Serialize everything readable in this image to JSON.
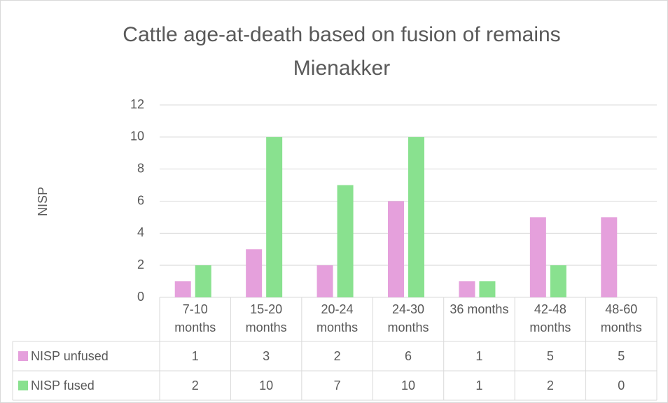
{
  "chart_data": {
    "type": "bar",
    "title": "Cattle age-at-death based on fusion of remains Mienakker",
    "y_label": "NISP",
    "categories": [
      "7-10 months",
      "15-20 months",
      "20-24 months",
      "24-30 months",
      "36 months",
      "42-48 months",
      "48-60 months"
    ],
    "series": [
      {
        "name": "NISP unfused",
        "color": "#e5a0dc",
        "values": [
          1,
          3,
          2,
          6,
          1,
          5,
          5
        ]
      },
      {
        "name": "NISP fused",
        "color": "#89e18f",
        "values": [
          2,
          10,
          7,
          10,
          1,
          2,
          0
        ]
      }
    ],
    "ylim": [
      0,
      12
    ],
    "yticks": [
      0,
      2,
      4,
      6,
      8,
      10,
      12
    ],
    "grid": true,
    "legend": "table"
  }
}
